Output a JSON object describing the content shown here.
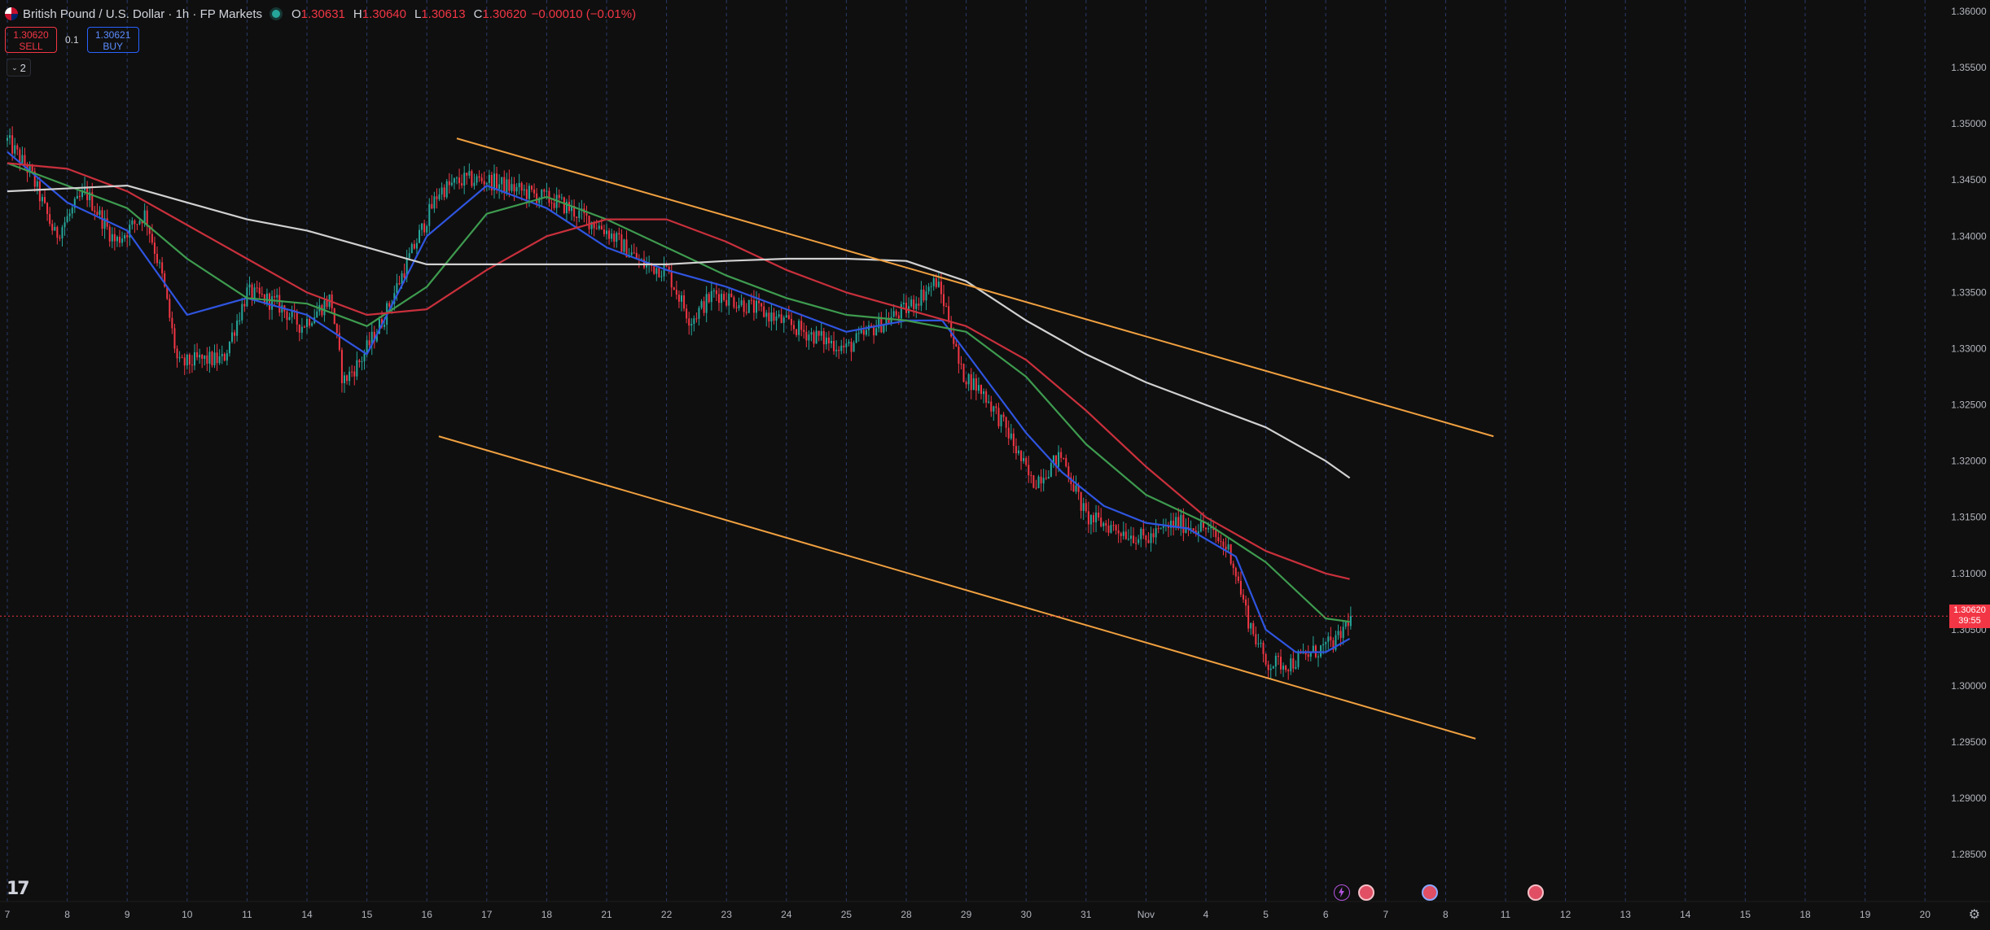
{
  "header": {
    "title": "British Pound / U.S. Dollar · 1h · FP Markets",
    "ohlc": [
      {
        "k": "O",
        "v": "1.30631"
      },
      {
        "k": "H",
        "v": "1.30640"
      },
      {
        "k": "L",
        "v": "1.30613"
      },
      {
        "k": "C",
        "v": "1.30620"
      },
      {
        "k": "",
        "v": "−0.00010 (−0.01%)"
      }
    ]
  },
  "trade": {
    "sell_price": "1.30620",
    "sell_label": "SELL",
    "spread": "0.1",
    "buy_price": "1.30621",
    "buy_label": "BUY"
  },
  "indicators_toggle": "2",
  "last_price": {
    "price": "1.30620",
    "countdown": "39:55"
  },
  "colors": {
    "background": "#0f0f0f",
    "up": "#26a69a",
    "down": "#f23645",
    "ma_blue": "#2f55e0",
    "ma_green": "#3e9b4f",
    "ma_red": "#c9303c",
    "ma_white": "#d1d1d1",
    "channel": "#f0a040",
    "grid": "#2a3a6a"
  },
  "event_icons": [
    "lightning-event-icon",
    "flag-event-icon",
    "flag-event-icon",
    "flag-event-icon"
  ],
  "chart_data": {
    "type": "candlestick",
    "symbol": "GBPUSD",
    "timeframe": "1h",
    "ylim": [
      1.2823,
      1.3622
    ],
    "y_ticks": [
      "1.28500",
      "1.29000",
      "1.29500",
      "1.30000",
      "1.30500",
      "1.31000",
      "1.31500",
      "1.32000",
      "1.32500",
      "1.33000",
      "1.33500",
      "1.34000",
      "1.34500",
      "1.35000",
      "1.35500",
      "1.36000"
    ],
    "x_ticks": [
      "7",
      "8",
      "9",
      "10",
      "11",
      "14",
      "15",
      "16",
      "17",
      "18",
      "21",
      "22",
      "23",
      "24",
      "25",
      "28",
      "29",
      "30",
      "31",
      "Nov",
      "4",
      "5",
      "6",
      "7",
      "8",
      "11",
      "12",
      "13",
      "14",
      "15",
      "18",
      "19",
      "20"
    ],
    "last_index": 22.4,
    "close_anchors": [
      [
        0,
        1.3485
      ],
      [
        0.4,
        1.3455
      ],
      [
        0.8,
        1.34
      ],
      [
        1.3,
        1.344
      ],
      [
        1.8,
        1.3395
      ],
      [
        2.3,
        1.342
      ],
      [
        2.6,
        1.336
      ],
      [
        2.85,
        1.3285
      ],
      [
        3.2,
        1.329
      ],
      [
        3.6,
        1.329
      ],
      [
        4.0,
        1.335
      ],
      [
        4.5,
        1.334
      ],
      [
        4.9,
        1.332
      ],
      [
        5.4,
        1.3345
      ],
      [
        5.6,
        1.327
      ],
      [
        5.9,
        1.329
      ],
      [
        6.3,
        1.333
      ],
      [
        6.7,
        1.338
      ],
      [
        7.2,
        1.344
      ],
      [
        7.6,
        1.345
      ],
      [
        8.0,
        1.345
      ],
      [
        8.6,
        1.344
      ],
      [
        9.2,
        1.343
      ],
      [
        10.0,
        1.3405
      ],
      [
        10.6,
        1.3375
      ],
      [
        11.0,
        1.337
      ],
      [
        11.4,
        1.3325
      ],
      [
        11.8,
        1.335
      ],
      [
        12.5,
        1.3335
      ],
      [
        13.3,
        1.3315
      ],
      [
        14.0,
        1.33
      ],
      [
        14.5,
        1.332
      ],
      [
        15.0,
        1.3335
      ],
      [
        15.5,
        1.336
      ],
      [
        15.7,
        1.333
      ],
      [
        15.9,
        1.328
      ],
      [
        16.3,
        1.326
      ],
      [
        16.7,
        1.3225
      ],
      [
        17.1,
        1.318
      ],
      [
        17.6,
        1.3205
      ],
      [
        18.0,
        1.315
      ],
      [
        18.5,
        1.314
      ],
      [
        19.0,
        1.313
      ],
      [
        19.5,
        1.3145
      ],
      [
        20.0,
        1.314
      ],
      [
        20.4,
        1.312
      ],
      [
        20.7,
        1.306
      ],
      [
        21.0,
        1.302
      ],
      [
        21.4,
        1.302
      ],
      [
        21.8,
        1.303
      ],
      [
        22.2,
        1.304
      ],
      [
        22.4,
        1.3062
      ]
    ],
    "moving_averages": [
      {
        "color": "blue",
        "points": [
          [
            0,
            1.3475
          ],
          [
            1,
            1.343
          ],
          [
            2,
            1.3405
          ],
          [
            3,
            1.333
          ],
          [
            4,
            1.3345
          ],
          [
            5,
            1.333
          ],
          [
            6,
            1.3295
          ],
          [
            7,
            1.34
          ],
          [
            8,
            1.3445
          ],
          [
            9,
            1.3425
          ],
          [
            10,
            1.339
          ],
          [
            11,
            1.337
          ],
          [
            12,
            1.3355
          ],
          [
            13,
            1.3335
          ],
          [
            14,
            1.3315
          ],
          [
            15,
            1.3325
          ],
          [
            15.6,
            1.3325
          ],
          [
            16.3,
            1.3275
          ],
          [
            17,
            1.3225
          ],
          [
            17.6,
            1.319
          ],
          [
            18.3,
            1.316
          ],
          [
            19,
            1.3145
          ],
          [
            19.7,
            1.314
          ],
          [
            20.5,
            1.3115
          ],
          [
            21,
            1.305
          ],
          [
            21.5,
            1.303
          ],
          [
            22,
            1.303
          ],
          [
            22.4,
            1.3042
          ]
        ]
      },
      {
        "color": "green",
        "points": [
          [
            0,
            1.3465
          ],
          [
            1,
            1.3445
          ],
          [
            2,
            1.3425
          ],
          [
            3,
            1.338
          ],
          [
            4,
            1.3345
          ],
          [
            5,
            1.334
          ],
          [
            6,
            1.332
          ],
          [
            7,
            1.3355
          ],
          [
            8,
            1.342
          ],
          [
            9,
            1.3435
          ],
          [
            10,
            1.3415
          ],
          [
            11,
            1.339
          ],
          [
            12,
            1.3365
          ],
          [
            13,
            1.3345
          ],
          [
            14,
            1.333
          ],
          [
            15,
            1.3325
          ],
          [
            16,
            1.3315
          ],
          [
            17,
            1.3275
          ],
          [
            18,
            1.3215
          ],
          [
            19,
            1.317
          ],
          [
            20,
            1.3145
          ],
          [
            21,
            1.311
          ],
          [
            22,
            1.306
          ],
          [
            22.4,
            1.3057
          ]
        ]
      },
      {
        "color": "red",
        "points": [
          [
            0,
            1.3465
          ],
          [
            1,
            1.346
          ],
          [
            2,
            1.344
          ],
          [
            3,
            1.341
          ],
          [
            4,
            1.338
          ],
          [
            5,
            1.335
          ],
          [
            6,
            1.333
          ],
          [
            7,
            1.3335
          ],
          [
            8,
            1.337
          ],
          [
            9,
            1.34
          ],
          [
            10,
            1.3415
          ],
          [
            11,
            1.3415
          ],
          [
            12,
            1.3395
          ],
          [
            13,
            1.337
          ],
          [
            14,
            1.335
          ],
          [
            15,
            1.3335
          ],
          [
            16,
            1.332
          ],
          [
            17,
            1.329
          ],
          [
            18,
            1.3245
          ],
          [
            19,
            1.3195
          ],
          [
            20,
            1.315
          ],
          [
            21,
            1.312
          ],
          [
            22,
            1.31
          ],
          [
            22.4,
            1.3095
          ]
        ]
      },
      {
        "color": "white",
        "points": [
          [
            0,
            1.344
          ],
          [
            2,
            1.3445
          ],
          [
            3,
            1.343
          ],
          [
            4,
            1.3415
          ],
          [
            5,
            1.3405
          ],
          [
            6,
            1.339
          ],
          [
            7,
            1.3375
          ],
          [
            8,
            1.3375
          ],
          [
            9,
            1.3375
          ],
          [
            10,
            1.3375
          ],
          [
            11,
            1.3375
          ],
          [
            12,
            1.3378
          ],
          [
            13,
            1.338
          ],
          [
            14,
            1.338
          ],
          [
            15,
            1.3378
          ],
          [
            16,
            1.336
          ],
          [
            17,
            1.3325
          ],
          [
            18,
            1.3295
          ],
          [
            19,
            1.327
          ],
          [
            20,
            1.325
          ],
          [
            21,
            1.323
          ],
          [
            22,
            1.32
          ],
          [
            22.4,
            1.3185
          ]
        ]
      }
    ],
    "trend_lines": [
      {
        "name": "upper",
        "from": [
          7.5,
          1.3487
        ],
        "to": [
          24.8,
          1.3222
        ]
      },
      {
        "name": "lower",
        "from": [
          7.2,
          1.3222
        ],
        "to": [
          24.5,
          1.2953
        ]
      }
    ]
  }
}
